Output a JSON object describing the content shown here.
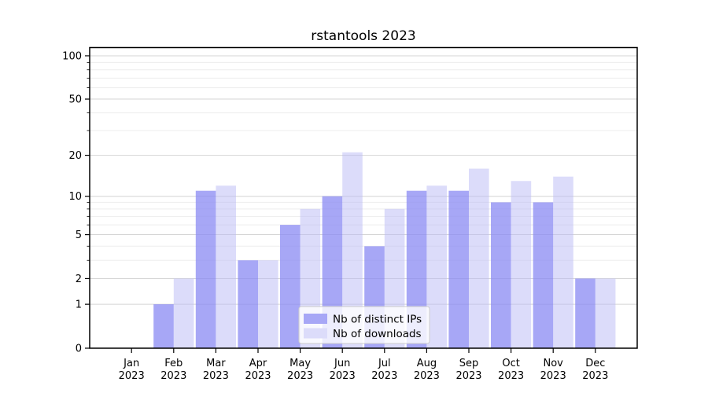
{
  "figure": {
    "background": "#ffffff"
  },
  "chart_data": {
    "type": "bar",
    "title": "rstantools 2023",
    "categories": [
      "Jan",
      "Feb",
      "Mar",
      "Apr",
      "May",
      "Jun",
      "Jul",
      "Aug",
      "Sep",
      "Oct",
      "Nov",
      "Dec"
    ],
    "category_year": "2023",
    "series": [
      {
        "name": "Nb of distinct IPs",
        "color": "rgba(138,138,243,0.75)",
        "color_solid": "#a7a7f6",
        "values": [
          0,
          1,
          11,
          3,
          6,
          10,
          4,
          11,
          11,
          9,
          9,
          2
        ]
      },
      {
        "name": "Nb of downloads",
        "color": "rgba(185,185,245,0.5)",
        "color_solid": "#dcdcfa",
        "values": [
          0,
          2,
          12,
          3,
          8,
          21,
          8,
          12,
          16,
          13,
          14,
          2
        ]
      }
    ],
    "xlabel": "",
    "ylabel": "",
    "yscale": "log1p",
    "ylim": [
      0,
      114
    ],
    "yticks": [
      0,
      1,
      2,
      5,
      10,
      20,
      50,
      100
    ],
    "yticks_minor": [
      3,
      4,
      6,
      7,
      8,
      9,
      30,
      40,
      60,
      70,
      80,
      90
    ],
    "grid": "horizontal",
    "legend_position": "bottom-center",
    "colors": {
      "grid_major": "#d4d4d4",
      "grid_minor": "#ededed",
      "axis": "#000000",
      "text": "#000000",
      "legend_bg": "rgba(255,255,255,0.8)",
      "legend_border": "#cccccc"
    }
  }
}
